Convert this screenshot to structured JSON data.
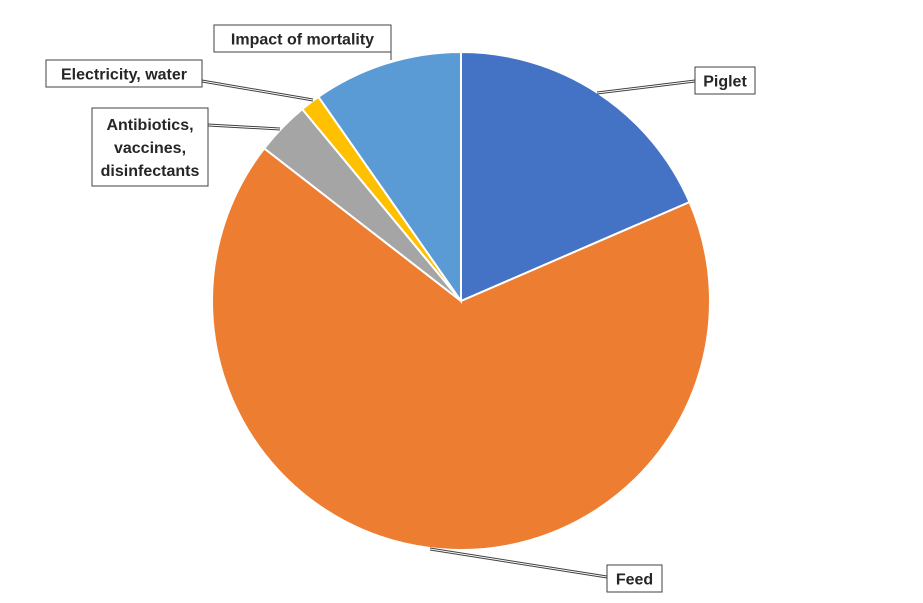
{
  "chart_data": {
    "type": "pie",
    "title": "",
    "start_angle_deg": 0,
    "direction": "clockwise",
    "legend": "none",
    "slices": [
      {
        "label": "Piglet",
        "value": 18.5,
        "color": "#4472C4",
        "label_lines": [
          "Piglet"
        ]
      },
      {
        "label": "Feed",
        "value": 67.0,
        "color": "#ED7D31",
        "label_lines": [
          "Feed"
        ]
      },
      {
        "label": "Antibiotics, vaccines, disinfectants",
        "value": 3.5,
        "color": "#A5A5A5",
        "label_lines": [
          "Antibiotics,",
          "vaccines,",
          "disinfectants"
        ]
      },
      {
        "label": "Electricity, water",
        "value": 1.3,
        "color": "#FFC000",
        "label_lines": [
          "Electricity, water"
        ]
      },
      {
        "label": "Impact of mortality",
        "value": 9.7,
        "color": "#5B9BD5",
        "label_lines": [
          "Impact of mortality"
        ]
      }
    ]
  }
}
